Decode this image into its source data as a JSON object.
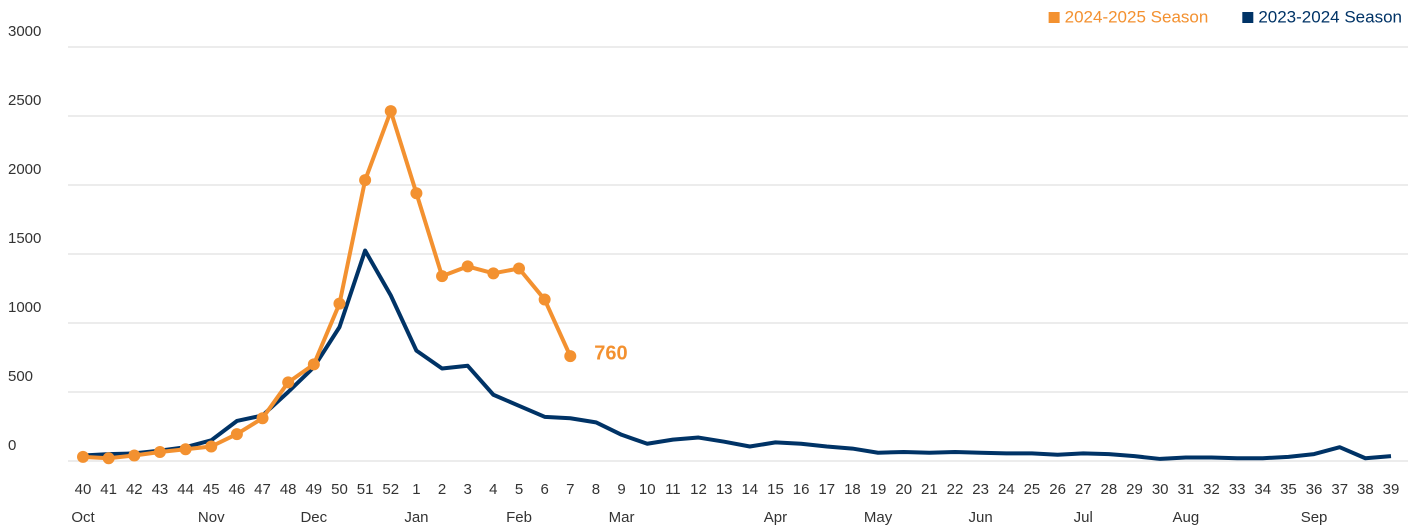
{
  "chart_data": {
    "type": "line",
    "categories": [
      "40",
      "41",
      "42",
      "43",
      "44",
      "45",
      "46",
      "47",
      "48",
      "49",
      "50",
      "51",
      "52",
      "1",
      "2",
      "3",
      "4",
      "5",
      "6",
      "7",
      "8",
      "9",
      "10",
      "11",
      "12",
      "13",
      "14",
      "15",
      "16",
      "17",
      "18",
      "19",
      "20",
      "21",
      "22",
      "23",
      "24",
      "25",
      "26",
      "27",
      "28",
      "29",
      "30",
      "31",
      "32",
      "33",
      "34",
      "35",
      "36",
      "37",
      "38",
      "39"
    ],
    "month_labels": [
      "Oct",
      null,
      null,
      null,
      null,
      "Nov",
      null,
      null,
      null,
      "Dec",
      null,
      null,
      null,
      "Jan",
      null,
      null,
      null,
      "Feb",
      null,
      null,
      null,
      "Mar",
      null,
      null,
      null,
      null,
      null,
      "Apr",
      null,
      null,
      null,
      "May",
      null,
      null,
      null,
      "Jun",
      null,
      null,
      null,
      "Jul",
      null,
      null,
      null,
      "Aug",
      null,
      null,
      null,
      null,
      "Sep",
      null,
      null,
      null
    ],
    "series": [
      {
        "name": "2024-2025 Season",
        "color": "#f39130",
        "markers": true,
        "values": [
          30,
          20,
          40,
          65,
          85,
          105,
          195,
          310,
          570,
          700,
          1140,
          2035,
          2535,
          1940,
          1340,
          1410,
          1360,
          1395,
          1170,
          760,
          null,
          null,
          null,
          null,
          null,
          null,
          null,
          null,
          null,
          null,
          null,
          null,
          null,
          null,
          null,
          null,
          null,
          null,
          null,
          null,
          null,
          null,
          null,
          null,
          null,
          null,
          null,
          null,
          null,
          null,
          null,
          null
        ]
      },
      {
        "name": "2023-2024 Season",
        "color": "#003366",
        "markers": false,
        "values": [
          40,
          50,
          55,
          75,
          100,
          150,
          290,
          330,
          500,
          680,
          970,
          1525,
          1200,
          800,
          670,
          690,
          480,
          400,
          320,
          310,
          280,
          190,
          125,
          155,
          170,
          140,
          105,
          135,
          125,
          105,
          90,
          60,
          65,
          60,
          65,
          60,
          55,
          55,
          45,
          55,
          50,
          35,
          15,
          25,
          25,
          20,
          20,
          30,
          50,
          100,
          20,
          35
        ]
      }
    ],
    "ylim": [
      0,
      3000
    ],
    "yticks": [
      0,
      500,
      1000,
      1500,
      2000,
      2500,
      3000
    ],
    "grid": true,
    "legend": "top-right"
  }
}
